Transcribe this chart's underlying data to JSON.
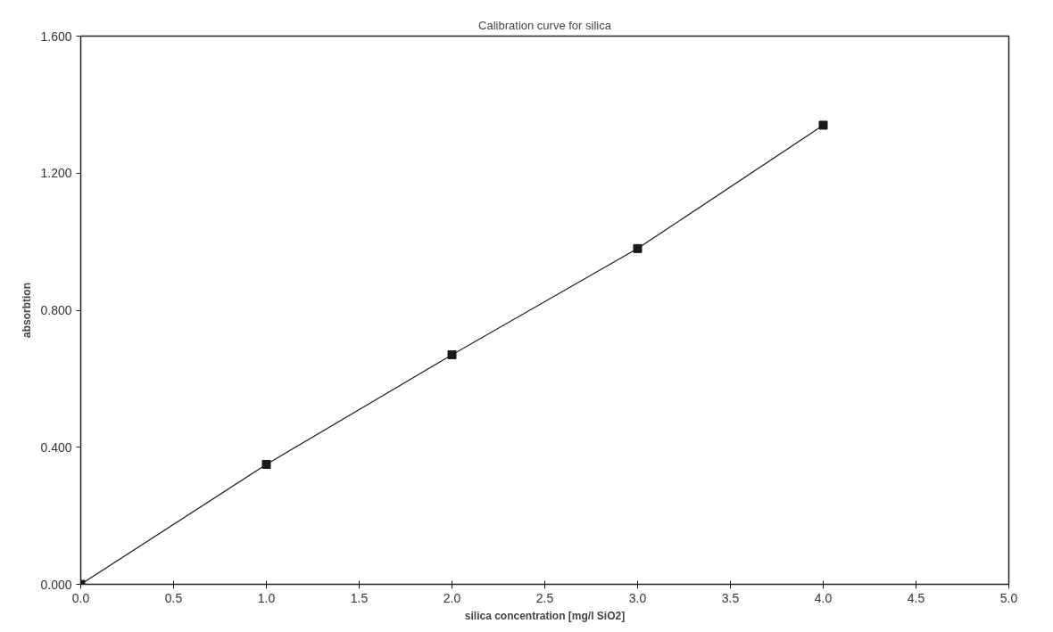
{
  "chart_data": {
    "type": "line",
    "title": "Calibration curve for silica",
    "xlabel": "silica concentration [mg/l SiO2]",
    "ylabel": "absorbtion",
    "x": [
      0,
      1,
      2,
      3,
      4
    ],
    "series": [
      {
        "color": "#1a1a1a",
        "values": [
          0,
          0.35,
          0.67,
          0.98,
          1.34
        ]
      }
    ],
    "marker": "square",
    "line_style": "solid",
    "grid": false,
    "xlim": [
      0,
      5
    ],
    "xticks": [
      {
        "value": 0,
        "label": "0.0"
      },
      0.5,
      {
        "value": 1,
        "label": "1.0"
      },
      1.5,
      {
        "value": 2,
        "label": "2.0"
      },
      2.5,
      {
        "value": 3,
        "label": "3.0"
      },
      3.5,
      {
        "value": 4,
        "label": "4.0"
      },
      4.5,
      {
        "value": 5,
        "label": "5.0"
      }
    ],
    "ylim": [
      0,
      1.6
    ],
    "yticks": [
      {
        "value": 0,
        "label": "0.000"
      },
      {
        "value": 0.4,
        "label": "0.400"
      },
      {
        "value": 0.8,
        "label": "0.800"
      },
      {
        "value": 1.2,
        "label": "1.200"
      },
      {
        "value": 1.6,
        "label": "1.600"
      }
    ]
  }
}
